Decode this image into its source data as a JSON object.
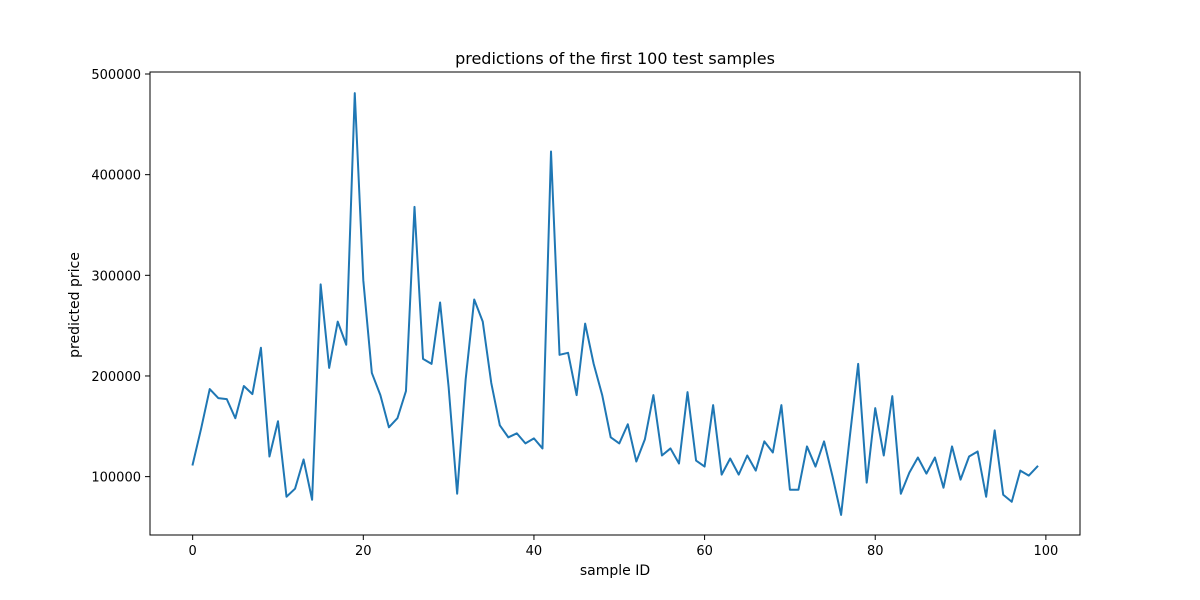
{
  "chart_data": {
    "type": "line",
    "title": "predictions of the first 100 test samples",
    "xlabel": "sample ID",
    "ylabel": "predicted price",
    "xlim": [
      -5,
      104
    ],
    "ylim": [
      42000,
      502000
    ],
    "xticks": [
      0,
      20,
      40,
      60,
      80,
      100
    ],
    "xtick_labels": [
      "0",
      "20",
      "40",
      "60",
      "80",
      "100"
    ],
    "yticks": [
      100000,
      200000,
      300000,
      400000,
      500000
    ],
    "ytick_labels": [
      "100000",
      "200000",
      "300000",
      "400000",
      "500000"
    ],
    "grid": false,
    "line_color": "#1f77b4",
    "series": [
      {
        "x": [
          0,
          1,
          2,
          3,
          4,
          5,
          6,
          7,
          8,
          9,
          10,
          11,
          12,
          13,
          14,
          15,
          16,
          17,
          18,
          19,
          20,
          21,
          22,
          23,
          24,
          25,
          26,
          27,
          28,
          29,
          30,
          31,
          32,
          33,
          34,
          35,
          36,
          37,
          38,
          39,
          40,
          41,
          42,
          43,
          44,
          45,
          46,
          47,
          48,
          49,
          50,
          51,
          52,
          53,
          54,
          55,
          56,
          57,
          58,
          59,
          60,
          61,
          62,
          63,
          64,
          65,
          66,
          67,
          68,
          69,
          70,
          71,
          72,
          73,
          74,
          75,
          76,
          77,
          78,
          79,
          80,
          81,
          82,
          83,
          84,
          85,
          86,
          87,
          88,
          89,
          90,
          91,
          92,
          93,
          94,
          95,
          96,
          97,
          98,
          99
        ],
        "values": [
          112000,
          148000,
          187000,
          178000,
          177000,
          158000,
          190000,
          182000,
          228000,
          120000,
          155000,
          80000,
          88000,
          117000,
          77000,
          291000,
          208000,
          254000,
          231000,
          481000,
          295000,
          203000,
          181000,
          149000,
          158000,
          185000,
          368000,
          217000,
          212000,
          273000,
          189000,
          83000,
          197000,
          276000,
          254000,
          193000,
          151000,
          139000,
          143000,
          133000,
          138000,
          128000,
          423000,
          221000,
          223000,
          181000,
          252000,
          212000,
          181000,
          139000,
          133000,
          152000,
          115000,
          137000,
          181000,
          121000,
          128000,
          113000,
          184000,
          116000,
          110000,
          171000,
          102000,
          118000,
          102000,
          121000,
          106000,
          135000,
          124000,
          171000,
          87000,
          87000,
          130000,
          110000,
          135000,
          100000,
          62000,
          138000,
          212000,
          94000,
          168000,
          121000,
          180000,
          83000,
          104000,
          119000,
          103000,
          119000,
          89000,
          130000,
          97000,
          120000,
          125000,
          80000,
          146000,
          82000,
          75000,
          106000,
          101000,
          110000
        ]
      }
    ]
  }
}
